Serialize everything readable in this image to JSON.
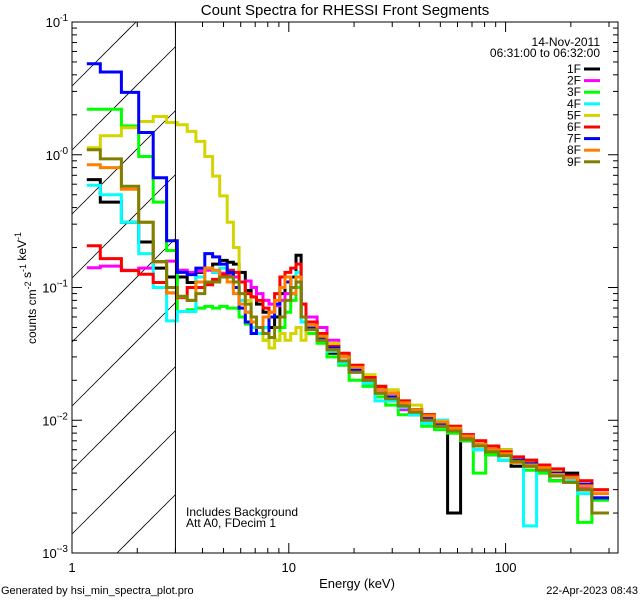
{
  "chart_data": {
    "type": "line",
    "title": "Count Spectra for RHESSI Front Segments",
    "xlabel": "Energy (keV)",
    "ylabel": "counts cm^-2 s^-1 keV^-1",
    "xscale": "log",
    "yscale": "log",
    "xlim": [
      1,
      330
    ],
    "ylim": [
      0.001,
      10
    ],
    "x_tick_labels": [
      "1",
      "10",
      "100"
    ],
    "y_tick_labels": [
      "10^1",
      "10^0",
      "10^-1",
      "10^-2",
      "10^-3"
    ],
    "legend_placement": "top-right",
    "legend_header": [
      "14-Nov-2011",
      "06:31:00 to 06:32:00"
    ],
    "annotations": [
      "Includes Background",
      "Att A0, FDecim 1"
    ],
    "shaded_region_keV": [
      1,
      3
    ],
    "energy_edges_keV": [
      1.17,
      1.35,
      1.69,
      2.03,
      2.37,
      2.73,
      3.06,
      3.4,
      3.73,
      4.1,
      4.45,
      4.8,
      5.2,
      5.55,
      5.9,
      6.3,
      6.7,
      7.1,
      7.6,
      8.1,
      8.6,
      9.1,
      9.6,
      10.2,
      10.8,
      11.4,
      12,
      13.5,
      15,
      17,
      19,
      22,
      25,
      28,
      32,
      36,
      41,
      47,
      54,
      62,
      71,
      81,
      93,
      106,
      121,
      139,
      160,
      185,
      215,
      250,
      300
    ],
    "series": [
      {
        "name": "1F",
        "color": "#000000",
        "values": [
          0.65,
          0.44,
          0.31,
          0.22,
          0.14,
          0.12,
          0.12,
          0.109,
          0.13,
          0.14,
          0.15,
          0.16,
          0.155,
          0.15,
          0.13,
          0.095,
          0.085,
          0.075,
          0.065,
          0.05,
          0.06,
          0.09,
          0.11,
          0.12,
          0.175,
          0.06,
          0.055,
          0.04,
          0.032,
          0.027,
          0.025,
          0.019,
          0.018,
          0.014,
          0.013,
          0.011,
          0.011,
          0.009,
          0.002,
          0.007,
          0.0065,
          0.0055,
          0.006,
          0.0045,
          0.005,
          0.0042,
          0.0035,
          0.004,
          0.003,
          0.0026
        ]
      },
      {
        "name": "2F",
        "color": "#ff00ff",
        "values": [
          0.141,
          0.145,
          0.135,
          0.14,
          0.156,
          0.158,
          0.135,
          0.13,
          0.133,
          0.135,
          0.13,
          0.128,
          0.125,
          0.12,
          0.11,
          0.112,
          0.1,
          0.09,
          0.08,
          0.075,
          0.073,
          0.08,
          0.09,
          0.1,
          0.11,
          0.075,
          0.06,
          0.05,
          0.04,
          0.03,
          0.023,
          0.021,
          0.016,
          0.016,
          0.012,
          0.012,
          0.01,
          0.01,
          0.008,
          0.0078,
          0.006,
          0.0062,
          0.005,
          0.0052,
          0.0045,
          0.0044,
          0.004,
          0.0038,
          0.0031,
          0.003
        ]
      },
      {
        "name": "3F",
        "color": "#00ff00",
        "values": [
          2.2,
          2.2,
          1.65,
          0.97,
          0.44,
          0.19,
          0.066,
          0.068,
          0.07,
          0.072,
          0.07,
          0.072,
          0.07,
          0.07,
          0.06,
          0.053,
          0.05,
          0.045,
          0.04,
          0.042,
          0.04,
          0.05,
          0.065,
          0.08,
          0.1,
          0.06,
          0.045,
          0.038,
          0.03,
          0.026,
          0.02,
          0.018,
          0.015,
          0.013,
          0.011,
          0.011,
          0.009,
          0.0085,
          0.008,
          0.007,
          0.004,
          0.0055,
          0.005,
          0.0048,
          0.0042,
          0.004,
          0.0035,
          0.0034,
          0.0017,
          0.0025
        ]
      },
      {
        "name": "4F",
        "color": "#00ffff",
        "values": [
          0.59,
          0.5,
          0.31,
          0.18,
          0.1,
          0.056,
          0.066,
          0.066,
          0.12,
          0.14,
          0.13,
          0.14,
          0.12,
          0.1,
          0.08,
          0.065,
          0.05,
          0.045,
          0.05,
          0.06,
          0.075,
          0.1,
          0.12,
          0.1,
          0.13,
          0.055,
          0.05,
          0.04,
          0.033,
          0.027,
          0.024,
          0.019,
          0.014,
          0.014,
          0.0125,
          0.011,
          0.0095,
          0.01,
          0.0085,
          0.0075,
          0.006,
          0.006,
          0.005,
          0.0052,
          0.0016,
          0.0042,
          0.004,
          0.0035,
          0.0028,
          0.002
        ]
      },
      {
        "name": "5F",
        "color": "#d4d400",
        "values": [
          1.13,
          1.39,
          1.6,
          1.78,
          1.94,
          1.75,
          1.68,
          1.5,
          1.26,
          0.97,
          0.69,
          0.49,
          0.31,
          0.2,
          0.11,
          0.08,
          0.06,
          0.05,
          0.04,
          0.035,
          0.04,
          0.045,
          0.04,
          0.045,
          0.05,
          0.04,
          0.05,
          0.045,
          0.038,
          0.031,
          0.026,
          0.022,
          0.018,
          0.017,
          0.014,
          0.013,
          0.011,
          0.0098,
          0.009,
          0.0075,
          0.007,
          0.0062,
          0.006,
          0.0052,
          0.0048,
          0.0045,
          0.0042,
          0.0038,
          0.0035,
          0.003
        ]
      },
      {
        "name": "6F",
        "color": "#ff0000",
        "values": [
          0.206,
          0.165,
          0.134,
          0.126,
          0.109,
          0.091,
          0.084,
          0.1,
          0.1,
          0.105,
          0.115,
          0.125,
          0.135,
          0.13,
          0.11,
          0.09,
          0.085,
          0.08,
          0.07,
          0.065,
          0.09,
          0.12,
          0.13,
          0.14,
          0.15,
          0.075,
          0.055,
          0.045,
          0.036,
          0.032,
          0.026,
          0.021,
          0.018,
          0.016,
          0.014,
          0.012,
          0.011,
          0.0096,
          0.009,
          0.0078,
          0.007,
          0.0064,
          0.0058,
          0.0053,
          0.005,
          0.0046,
          0.0043,
          0.0038,
          0.0035,
          0.003
        ]
      },
      {
        "name": "7F",
        "color": "#0000ff",
        "values": [
          4.85,
          4.2,
          2.95,
          1.47,
          0.67,
          0.225,
          0.13,
          0.125,
          0.14,
          0.18,
          0.17,
          0.15,
          0.13,
          0.1,
          0.07,
          0.055,
          0.045,
          0.05,
          0.045,
          0.06,
          0.075,
          0.1,
          0.11,
          0.09,
          0.12,
          0.06,
          0.05,
          0.042,
          0.035,
          0.03,
          0.024,
          0.02,
          0.017,
          0.015,
          0.013,
          0.012,
          0.0105,
          0.0095,
          0.0085,
          0.0075,
          0.0065,
          0.006,
          0.0055,
          0.005,
          0.0047,
          0.0043,
          0.004,
          0.0037,
          0.0033,
          0.0026
        ]
      },
      {
        "name": "8F",
        "color": "#ff8000",
        "values": [
          0.84,
          0.8,
          0.55,
          0.31,
          0.156,
          0.091,
          0.085,
          0.08,
          0.11,
          0.14,
          0.135,
          0.12,
          0.11,
          0.09,
          0.075,
          0.065,
          0.055,
          0.05,
          0.06,
          0.065,
          0.08,
          0.1,
          0.12,
          0.09,
          0.12,
          0.06,
          0.052,
          0.043,
          0.034,
          0.03,
          0.025,
          0.02,
          0.017,
          0.016,
          0.0135,
          0.012,
          0.0108,
          0.0097,
          0.0087,
          0.0076,
          0.0066,
          0.006,
          0.0056,
          0.0048,
          0.0046,
          0.0044,
          0.0039,
          0.0037,
          0.0032,
          0.0028
        ]
      },
      {
        "name": "9F",
        "color": "#808000",
        "values": [
          1.09,
          0.93,
          0.58,
          0.31,
          0.157,
          0.1,
          0.086,
          0.08,
          0.09,
          0.11,
          0.11,
          0.12,
          0.12,
          0.11,
          0.09,
          0.075,
          0.06,
          0.05,
          0.045,
          0.042,
          0.05,
          0.06,
          0.08,
          0.1,
          0.11,
          0.06,
          0.048,
          0.04,
          0.034,
          0.028,
          0.023,
          0.02,
          0.016,
          0.0145,
          0.0128,
          0.0115,
          0.01,
          0.009,
          0.0083,
          0.0072,
          0.0064,
          0.0058,
          0.0054,
          0.0049,
          0.0045,
          0.0042,
          0.0038,
          0.0034,
          0.003,
          0.002
        ]
      }
    ]
  },
  "footer": {
    "generated_by": "Generated by hsi_min_spectra_plot.pro",
    "timestamp": "22-Apr-2023 08:43"
  }
}
